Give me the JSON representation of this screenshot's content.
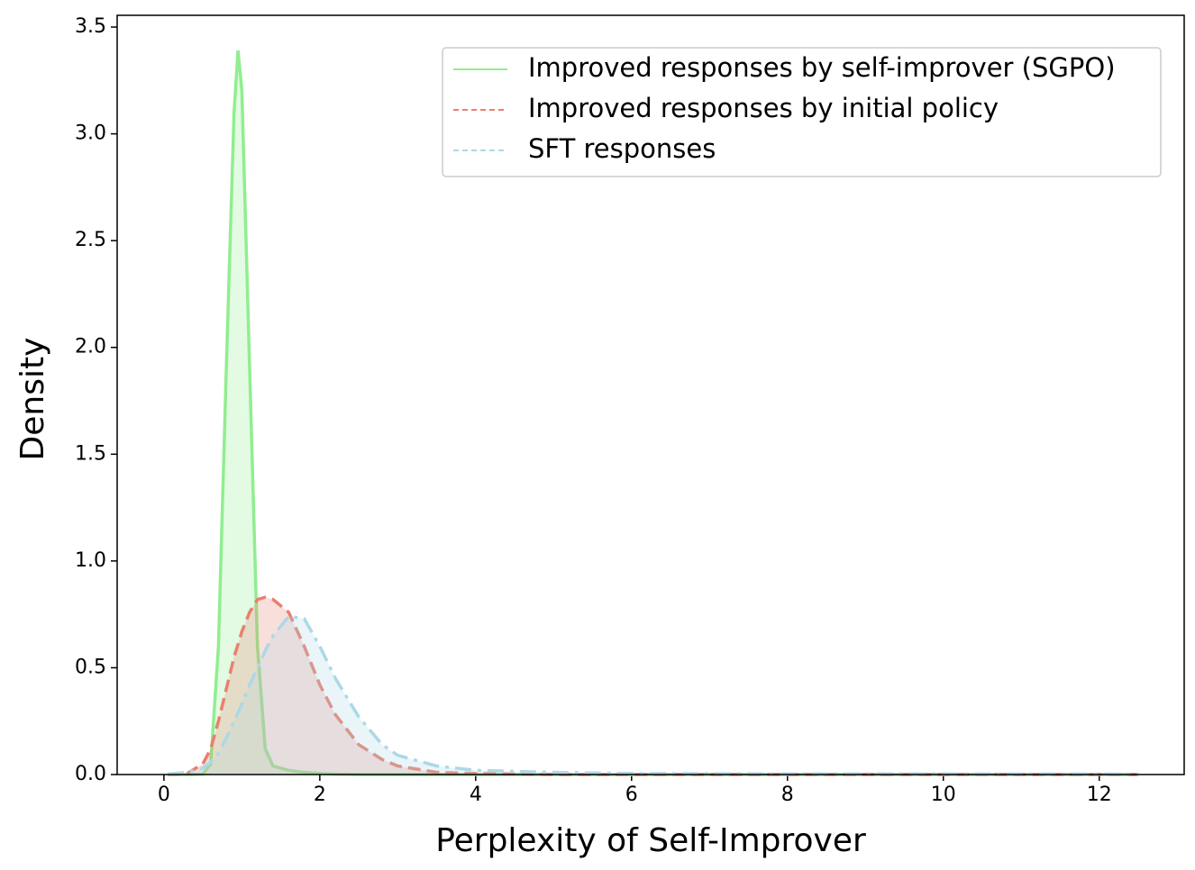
{
  "chart_data": {
    "type": "line",
    "x_label": "Perplexity of Self-Improver",
    "y_label": "Density",
    "x": [
      0.05,
      0.3,
      0.5,
      0.6,
      0.7,
      0.8,
      0.9,
      0.95,
      1.0,
      1.1,
      1.2,
      1.3,
      1.4,
      1.6,
      1.8,
      2.0,
      2.2,
      2.5,
      2.8,
      3.0,
      3.5,
      4,
      5,
      6,
      8,
      10,
      12.5
    ],
    "series": [
      {
        "name": "Improved responses by self-improver (SGPO)",
        "color": "#90ee90",
        "dash": "solid",
        "values": [
          0,
          0,
          0.002,
          0.05,
          0.6,
          1.9,
          3.1,
          3.39,
          3.2,
          1.9,
          0.6,
          0.12,
          0.04,
          0.02,
          0.01,
          0.005,
          0.002,
          0,
          0,
          0,
          0,
          0,
          0,
          0,
          0,
          0,
          0
        ]
      },
      {
        "name": "Improved responses by initial policy",
        "color": "#e9806e",
        "dash": "dashed",
        "values": [
          0,
          0.005,
          0.05,
          0.12,
          0.25,
          0.4,
          0.55,
          0.61,
          0.67,
          0.76,
          0.82,
          0.83,
          0.82,
          0.76,
          0.6,
          0.42,
          0.28,
          0.14,
          0.07,
          0.04,
          0.01,
          0.005,
          0,
          0,
          0,
          0,
          0
        ]
      },
      {
        "name": "SFT responses",
        "color": "#add8e6",
        "dash": "dashdot",
        "values": [
          0.002,
          0.01,
          0.03,
          0.06,
          0.1,
          0.17,
          0.25,
          0.29,
          0.33,
          0.42,
          0.5,
          0.58,
          0.65,
          0.74,
          0.73,
          0.6,
          0.45,
          0.27,
          0.14,
          0.09,
          0.04,
          0.02,
          0.01,
          0.005,
          0.003,
          0.003,
          0.002
        ]
      }
    ],
    "xlim": [
      -0.6,
      13.09
    ],
    "ylim": [
      0,
      3.555
    ],
    "xticks": [
      0,
      2,
      4,
      6,
      8,
      10,
      12
    ],
    "yticks": [
      {
        "value": 0,
        "label": "0.0"
      },
      0.5,
      {
        "value": 1,
        "label": "1.0"
      },
      1.5,
      {
        "value": 2,
        "label": "2.0"
      },
      2.5,
      {
        "value": 3,
        "label": "3.0"
      },
      3.5
    ],
    "fill": true,
    "legend": "upper right"
  }
}
